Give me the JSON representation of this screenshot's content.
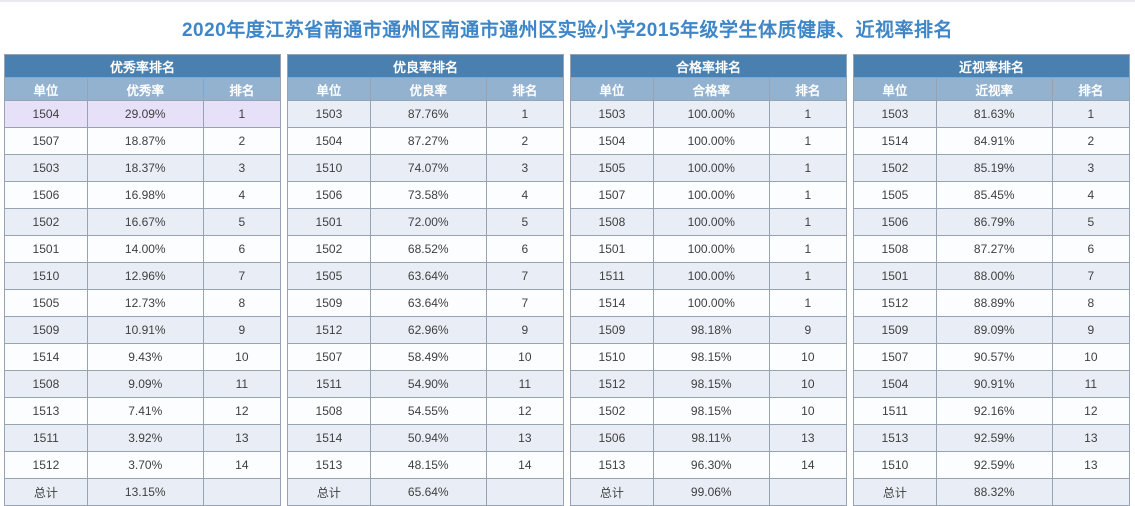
{
  "page": {
    "title": "2020年度江苏省南通市通州区南通市通州区实验小学2015年级学生体质健康、近视率排名"
  },
  "colors": {
    "topline": "#e8eaee",
    "title_text": "#3e86c7",
    "band_bg": "#4a80b0",
    "header_bg": "#93b2cf",
    "row_bg": "#fcfdfe",
    "row_alt_bg": "#e9eef6",
    "highlight_bg": "#e6e1f8",
    "outer_border": "#5f7082",
    "inner_border": "#97a3b1"
  },
  "tables": [
    {
      "title": "优秀率排名",
      "columns": [
        "单位",
        "优秀率",
        "排名"
      ],
      "highlight_row": 0,
      "rows": [
        [
          "1504",
          "29.09%",
          "1"
        ],
        [
          "1507",
          "18.87%",
          "2"
        ],
        [
          "1503",
          "18.37%",
          "3"
        ],
        [
          "1506",
          "16.98%",
          "4"
        ],
        [
          "1502",
          "16.67%",
          "5"
        ],
        [
          "1501",
          "14.00%",
          "6"
        ],
        [
          "1510",
          "12.96%",
          "7"
        ],
        [
          "1505",
          "12.73%",
          "8"
        ],
        [
          "1509",
          "10.91%",
          "9"
        ],
        [
          "1514",
          "9.43%",
          "10"
        ],
        [
          "1508",
          "9.09%",
          "11"
        ],
        [
          "1513",
          "7.41%",
          "12"
        ],
        [
          "1511",
          "3.92%",
          "13"
        ],
        [
          "1512",
          "3.70%",
          "14"
        ]
      ],
      "total": [
        "总计",
        "13.15%",
        ""
      ]
    },
    {
      "title": "优良率排名",
      "columns": [
        "单位",
        "优良率",
        "排名"
      ],
      "highlight_row": -1,
      "rows": [
        [
          "1503",
          "87.76%",
          "1"
        ],
        [
          "1504",
          "87.27%",
          "2"
        ],
        [
          "1510",
          "74.07%",
          "3"
        ],
        [
          "1506",
          "73.58%",
          "4"
        ],
        [
          "1501",
          "72.00%",
          "5"
        ],
        [
          "1502",
          "68.52%",
          "6"
        ],
        [
          "1505",
          "63.64%",
          "7"
        ],
        [
          "1509",
          "63.64%",
          "7"
        ],
        [
          "1512",
          "62.96%",
          "9"
        ],
        [
          "1507",
          "58.49%",
          "10"
        ],
        [
          "1511",
          "54.90%",
          "11"
        ],
        [
          "1508",
          "54.55%",
          "12"
        ],
        [
          "1514",
          "50.94%",
          "13"
        ],
        [
          "1513",
          "48.15%",
          "14"
        ]
      ],
      "total": [
        "总计",
        "65.64%",
        ""
      ]
    },
    {
      "title": "合格率排名",
      "columns": [
        "单位",
        "合格率",
        "排名"
      ],
      "highlight_row": -1,
      "rows": [
        [
          "1503",
          "100.00%",
          "1"
        ],
        [
          "1504",
          "100.00%",
          "1"
        ],
        [
          "1505",
          "100.00%",
          "1"
        ],
        [
          "1507",
          "100.00%",
          "1"
        ],
        [
          "1508",
          "100.00%",
          "1"
        ],
        [
          "1501",
          "100.00%",
          "1"
        ],
        [
          "1511",
          "100.00%",
          "1"
        ],
        [
          "1514",
          "100.00%",
          "1"
        ],
        [
          "1509",
          "98.18%",
          "9"
        ],
        [
          "1510",
          "98.15%",
          "10"
        ],
        [
          "1512",
          "98.15%",
          "10"
        ],
        [
          "1502",
          "98.15%",
          "10"
        ],
        [
          "1506",
          "98.11%",
          "13"
        ],
        [
          "1513",
          "96.30%",
          "14"
        ]
      ],
      "total": [
        "总计",
        "99.06%",
        ""
      ]
    },
    {
      "title": "近视率排名",
      "columns": [
        "单位",
        "近视率",
        "排名"
      ],
      "highlight_row": -1,
      "rows": [
        [
          "1503",
          "81.63%",
          "1"
        ],
        [
          "1514",
          "84.91%",
          "2"
        ],
        [
          "1502",
          "85.19%",
          "3"
        ],
        [
          "1505",
          "85.45%",
          "4"
        ],
        [
          "1506",
          "86.79%",
          "5"
        ],
        [
          "1508",
          "87.27%",
          "6"
        ],
        [
          "1501",
          "88.00%",
          "7"
        ],
        [
          "1512",
          "88.89%",
          "8"
        ],
        [
          "1509",
          "89.09%",
          "9"
        ],
        [
          "1507",
          "90.57%",
          "10"
        ],
        [
          "1504",
          "90.91%",
          "11"
        ],
        [
          "1511",
          "92.16%",
          "12"
        ],
        [
          "1513",
          "92.59%",
          "13"
        ],
        [
          "1510",
          "92.59%",
          "13"
        ]
      ],
      "total": [
        "总计",
        "88.32%",
        ""
      ]
    }
  ]
}
